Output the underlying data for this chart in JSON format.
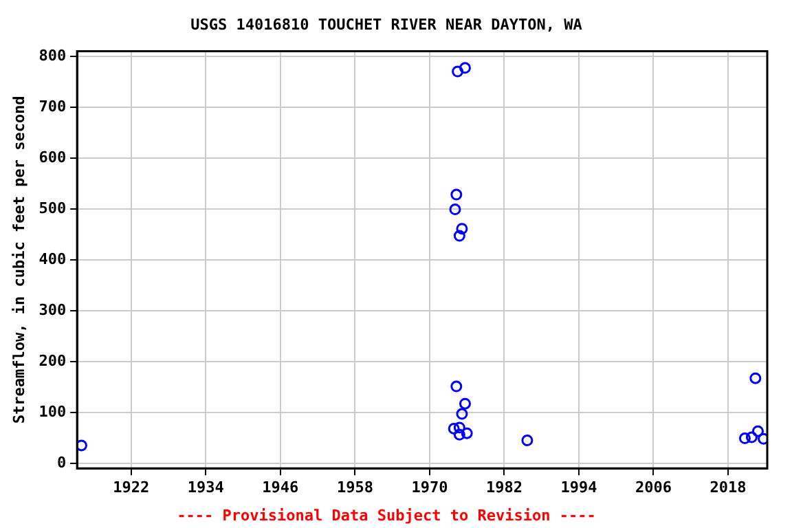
{
  "chart_data": {
    "type": "scatter",
    "title": "USGS 14016810 TOUCHET RIVER NEAR DAYTON, WA",
    "ylabel": "Streamflow, in cubic feet per second",
    "annotations": [
      "---- Provisional Data Subject to Revision ----"
    ],
    "x": [
      1914.0,
      1974.5,
      1975.7,
      1974.3,
      1974.1,
      1975.2,
      1974.8,
      1974.3,
      1975.7,
      1975.2,
      1973.9,
      1974.8,
      1974.8,
      1976.0,
      1985.7,
      2020.7,
      2021.8,
      2022.8,
      2023.7,
      2022.4
    ],
    "series": [
      {
        "color": "#0000ff",
        "values": [
          35,
          770,
          777,
          528,
          499,
          461,
          447,
          151,
          117,
          97,
          68,
          70,
          56,
          59,
          45,
          49,
          51,
          63,
          48,
          167
        ]
      }
    ],
    "xlim": [
      1913.3,
      2024.3
    ],
    "xticks": [
      1922,
      1934,
      1946,
      1958,
      1970,
      1982,
      1994,
      2006,
      2018
    ],
    "ylim": [
      -10,
      810
    ],
    "yticks": [
      0,
      100,
      200,
      300,
      400,
      500,
      600,
      700,
      800
    ],
    "grid": true,
    "legend": false,
    "marker": "circle"
  }
}
